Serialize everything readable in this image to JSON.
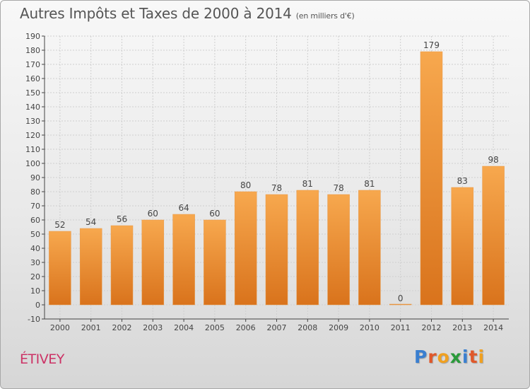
{
  "title": "Autres Impôts et Taxes de 2000 à 2014",
  "unit": "(en milliers d'€)",
  "location": "ÉTIVEY",
  "logo": {
    "letters": [
      "P",
      "r",
      "o",
      "x",
      "i",
      "t",
      "i"
    ],
    "colors": [
      "#3a7fd0",
      "#e0582a",
      "#f0a020",
      "#2a9a3a",
      "#3a7fd0",
      "#e0582a",
      "#f0a020"
    ]
  },
  "colors": {
    "bar_top": "#f7a84e",
    "bar_bottom": "#d9731c",
    "grid": "#cfcfcf",
    "axis": "#444444",
    "text": "#444444"
  },
  "chart_data": {
    "type": "bar",
    "categories": [
      "2000",
      "2001",
      "2002",
      "2003",
      "2004",
      "2005",
      "2006",
      "2007",
      "2008",
      "2009",
      "2010",
      "2011",
      "2012",
      "2013",
      "2014"
    ],
    "values": [
      52,
      54,
      56,
      60,
      64,
      60,
      80,
      78,
      81,
      78,
      81,
      0,
      179,
      83,
      98
    ],
    "data_labels": [
      "52",
      "54",
      "56",
      "60",
      "64",
      "60",
      "80",
      "78",
      "81",
      "78",
      "81",
      "0",
      "179",
      "83",
      "98"
    ],
    "ylim": [
      -10,
      190
    ],
    "yticks": [
      -10,
      0,
      10,
      20,
      30,
      40,
      50,
      60,
      70,
      80,
      90,
      100,
      110,
      120,
      130,
      140,
      150,
      160,
      170,
      180,
      190
    ],
    "grid": true
  }
}
